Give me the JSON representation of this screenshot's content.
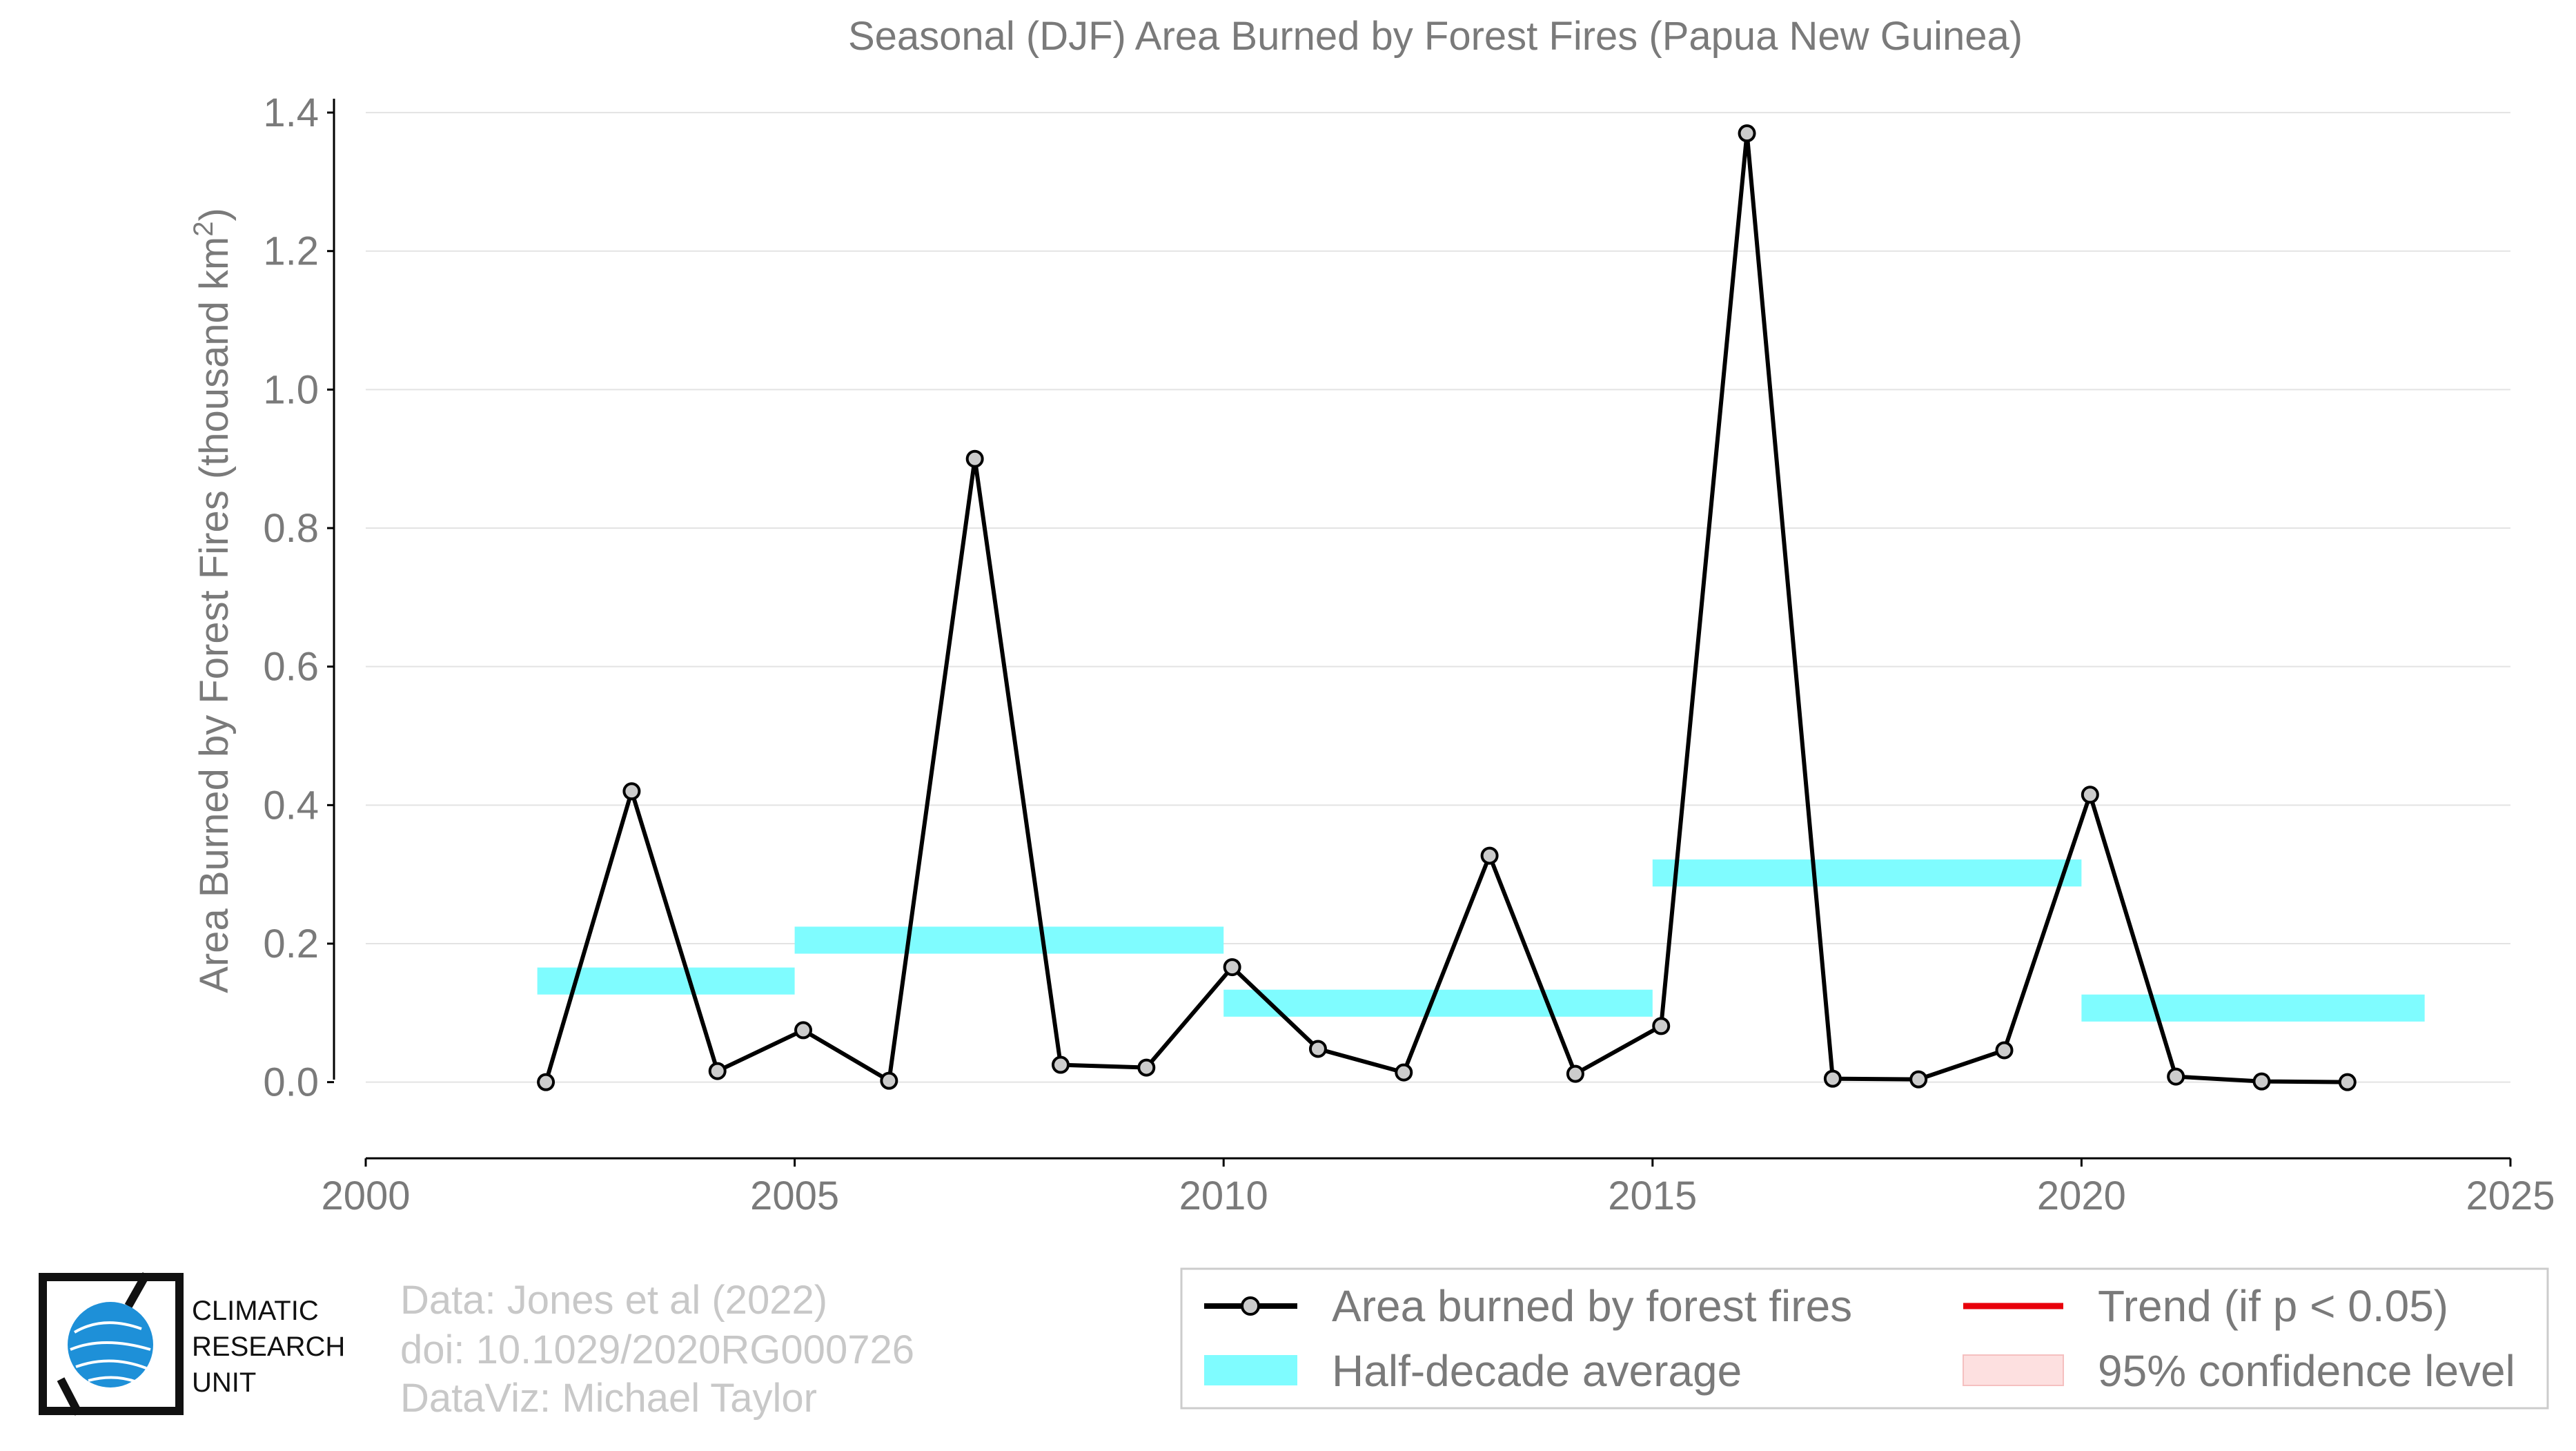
{
  "chart_data": {
    "type": "line",
    "title": "Seasonal (DJF) Area Burned by Forest Fires (Papua New Guinea)",
    "xlabel": "",
    "ylabel": "Area Burned by Forest Fires (thousand km",
    "ylabel_superscript": "2",
    "ylabel_close": ")",
    "xlim": [
      2000,
      2025
    ],
    "ylim": [
      -0.11,
      1.42
    ],
    "x_ticks": [
      2000,
      2005,
      2010,
      2015,
      2020,
      2025
    ],
    "y_ticks": [
      0.0,
      0.2,
      0.4,
      0.6,
      0.8,
      1.0,
      1.2,
      1.4
    ],
    "y_tick_labels": [
      "0.0",
      "0.2",
      "0.4",
      "0.6",
      "0.8",
      "1.0",
      "1.2",
      "1.4"
    ],
    "grid": "horizontal",
    "legend_position": "bottom-right",
    "series": [
      {
        "name": "Area burned by forest fires",
        "color": "#000000",
        "marker_fill": "#cccccc",
        "x": [
          2002.1,
          2003.1,
          2004.1,
          2005.1,
          2006.1,
          2007.1,
          2008.1,
          2009.1,
          2010.1,
          2011.1,
          2012.1,
          2013.1,
          2014.1,
          2015.1,
          2016.1,
          2017.1,
          2018.1,
          2019.1,
          2020.1,
          2021.1,
          2022.1,
          2023.1
        ],
        "values": [
          0.0,
          0.42,
          0.016,
          0.075,
          0.002,
          0.9,
          0.025,
          0.021,
          0.166,
          0.048,
          0.014,
          0.327,
          0.012,
          0.081,
          1.37,
          0.005,
          0.004,
          0.046,
          0.415,
          0.008,
          0.001,
          0.0
        ]
      }
    ],
    "half_decade_average": {
      "name": "Half-decade average",
      "color": "#7ffcff",
      "segments": [
        {
          "x_start": 2002.0,
          "x_end": 2005.0,
          "value": 0.146
        },
        {
          "x_start": 2005.0,
          "x_end": 2010.0,
          "value": 0.205
        },
        {
          "x_start": 2010.0,
          "x_end": 2015.0,
          "value": 0.114
        },
        {
          "x_start": 2015.0,
          "x_end": 2020.0,
          "value": 0.302
        },
        {
          "x_start": 2020.0,
          "x_end": 2024.0,
          "value": 0.107
        }
      ]
    },
    "legend": [
      {
        "label": "Area burned by forest fires",
        "kind": "line-marker",
        "color": "#000000"
      },
      {
        "label": "Trend (if p < 0.05)",
        "kind": "line",
        "color": "#e8000b"
      },
      {
        "label": "Half-decade average",
        "kind": "band",
        "color": "#7ffcff"
      },
      {
        "label": "95% confidence level",
        "kind": "band",
        "color": "#fde0e0"
      }
    ],
    "credits": [
      "Data: Jones et al (2022)",
      "doi: 10.1029/2020RG000726",
      "DataViz: Michael Taylor"
    ]
  },
  "logo": {
    "lines": [
      "CLIMATIC",
      "RESEARCH",
      "UNIT"
    ],
    "globe_color": "#1e90d8"
  }
}
